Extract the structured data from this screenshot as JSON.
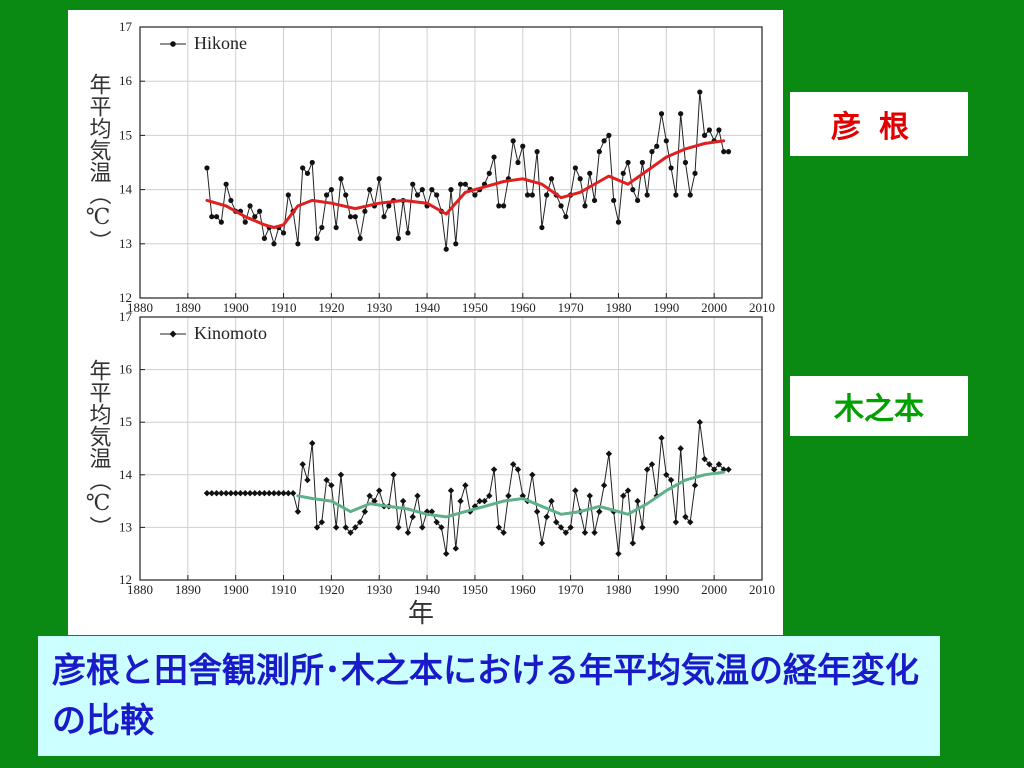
{
  "slide": {
    "label_hikone": "彦根",
    "label_kinomoto": "木之本",
    "caption": "彦根と田舎観測所･木之本における年平均気温の経年変化の比較"
  },
  "colors": {
    "background": "#0a8a12",
    "hikone_label": "#e00000",
    "kinomoto_label": "#00a000",
    "caption_text": "#1a1ac8",
    "caption_bg": "#ccffff",
    "hikone_trend": "#e02020",
    "kinomoto_trend": "#5fb08a"
  },
  "chart_data": [
    {
      "type": "line",
      "ylabel": "年平均気温（℃）",
      "xlabel": "",
      "xlim": [
        1880,
        2010
      ],
      "ylim": [
        12,
        17
      ],
      "xticks": [
        "1880",
        "1890",
        "1900",
        "1910",
        "1920",
        "1930",
        "1940",
        "1950",
        "1960",
        "1970",
        "1980",
        "1990",
        "2000",
        "2010"
      ],
      "yticks": [
        "12",
        "13",
        "14",
        "15",
        "16",
        "17"
      ],
      "grid": true,
      "legend_position": "top-left",
      "series": [
        {
          "name": "Hikone",
          "x": [
            1894,
            1895,
            1896,
            1897,
            1898,
            1899,
            1900,
            1901,
            1902,
            1903,
            1904,
            1905,
            1906,
            1907,
            1908,
            1909,
            1910,
            1911,
            1912,
            1913,
            1914,
            1915,
            1916,
            1917,
            1918,
            1919,
            1920,
            1921,
            1922,
            1923,
            1924,
            1925,
            1926,
            1927,
            1928,
            1929,
            1930,
            1931,
            1932,
            1933,
            1934,
            1935,
            1936,
            1937,
            1938,
            1939,
            1940,
            1941,
            1942,
            1943,
            1944,
            1945,
            1946,
            1947,
            1948,
            1949,
            1950,
            1951,
            1952,
            1953,
            1954,
            1955,
            1956,
            1957,
            1958,
            1959,
            1960,
            1961,
            1962,
            1963,
            1964,
            1965,
            1966,
            1967,
            1968,
            1969,
            1970,
            1971,
            1972,
            1973,
            1974,
            1975,
            1976,
            1977,
            1978,
            1979,
            1980,
            1981,
            1982,
            1983,
            1984,
            1985,
            1986,
            1987,
            1988,
            1989,
            1990,
            1991,
            1992,
            1993,
            1994,
            1995,
            1996,
            1997,
            1998,
            1999,
            2000,
            2001,
            2002,
            2003
          ],
          "y": [
            14.4,
            13.5,
            13.5,
            13.4,
            14.1,
            13.8,
            13.6,
            13.6,
            13.4,
            13.7,
            13.5,
            13.6,
            13.1,
            13.3,
            13.0,
            13.3,
            13.2,
            13.9,
            13.6,
            13.0,
            14.4,
            14.3,
            14.5,
            13.1,
            13.3,
            13.9,
            14.0,
            13.3,
            14.2,
            13.9,
            13.5,
            13.5,
            13.1,
            13.6,
            14.0,
            13.7,
            14.2,
            13.5,
            13.7,
            13.8,
            13.1,
            13.8,
            13.2,
            14.1,
            13.9,
            14.0,
            13.7,
            14.0,
            13.9,
            13.6,
            12.9,
            14.0,
            13.0,
            14.1,
            14.1,
            14.0,
            13.9,
            14.0,
            14.1,
            14.3,
            14.6,
            13.7,
            13.7,
            14.2,
            14.9,
            14.5,
            14.8,
            13.9,
            13.9,
            14.7,
            13.3,
            13.9,
            14.2,
            13.9,
            13.7,
            13.5,
            13.9,
            14.4,
            14.2,
            13.7,
            14.3,
            13.8,
            14.7,
            14.9,
            15.0,
            13.8,
            13.4,
            14.3,
            14.5,
            14.0,
            13.8,
            14.5,
            13.9,
            14.7,
            14.8,
            15.4,
            14.9,
            14.4,
            13.9,
            15.4,
            14.5,
            13.9,
            14.3,
            15.8,
            15.0,
            15.1,
            14.9,
            15.1,
            14.7,
            14.7
          ]
        },
        {
          "name": "",
          "x": [
            1894,
            1898,
            1902,
            1906,
            1908,
            1910,
            1913,
            1916,
            1920,
            1925,
            1930,
            1935,
            1940,
            1944,
            1948,
            1952,
            1956,
            1960,
            1964,
            1968,
            1972,
            1976,
            1978,
            1982,
            1986,
            1990,
            1994,
            1998,
            2002
          ],
          "y": [
            13.8,
            13.7,
            13.5,
            13.35,
            13.3,
            13.35,
            13.7,
            13.8,
            13.75,
            13.65,
            13.75,
            13.8,
            13.75,
            13.55,
            13.95,
            14.05,
            14.15,
            14.2,
            14.1,
            13.85,
            13.95,
            14.15,
            14.25,
            14.1,
            14.35,
            14.6,
            14.75,
            14.85,
            14.9
          ]
        }
      ]
    },
    {
      "type": "line",
      "ylabel": "年平均気温（℃）",
      "xlabel": "年",
      "xlim": [
        1880,
        2010
      ],
      "ylim": [
        12,
        17
      ],
      "xticks": [
        "1880",
        "1890",
        "1900",
        "1910",
        "1920",
        "1930",
        "1940",
        "1950",
        "1960",
        "1970",
        "1980",
        "1990",
        "2000",
        "2010"
      ],
      "yticks": [
        "12",
        "13",
        "14",
        "15",
        "16",
        "17"
      ],
      "grid": true,
      "legend_position": "top-left",
      "series": [
        {
          "name": "Kinomoto",
          "x": [
            1894,
            1895,
            1896,
            1897,
            1898,
            1899,
            1900,
            1901,
            1902,
            1903,
            1904,
            1905,
            1906,
            1907,
            1908,
            1909,
            1910,
            1911,
            1912,
            1913,
            1914,
            1915,
            1916,
            1917,
            1918,
            1919,
            1920,
            1921,
            1922,
            1923,
            1924,
            1925,
            1926,
            1927,
            1928,
            1929,
            1930,
            1931,
            1932,
            1933,
            1934,
            1935,
            1936,
            1937,
            1938,
            1939,
            1940,
            1941,
            1942,
            1943,
            1944,
            1945,
            1946,
            1947,
            1948,
            1949,
            1950,
            1951,
            1952,
            1953,
            1954,
            1955,
            1956,
            1957,
            1958,
            1959,
            1960,
            1961,
            1962,
            1963,
            1964,
            1965,
            1966,
            1967,
            1968,
            1969,
            1970,
            1971,
            1972,
            1973,
            1974,
            1975,
            1976,
            1977,
            1978,
            1979,
            1980,
            1981,
            1982,
            1983,
            1984,
            1985,
            1986,
            1987,
            1988,
            1989,
            1990,
            1991,
            1992,
            1993,
            1994,
            1995,
            1996,
            1997,
            1998,
            1999,
            2000,
            2001,
            2002,
            2003
          ],
          "y": [
            13.65,
            13.65,
            13.65,
            13.65,
            13.65,
            13.65,
            13.65,
            13.65,
            13.65,
            13.65,
            13.65,
            13.65,
            13.65,
            13.65,
            13.65,
            13.65,
            13.65,
            13.65,
            13.65,
            13.3,
            14.2,
            13.9,
            14.6,
            13.0,
            13.1,
            13.9,
            13.8,
            13.0,
            14.0,
            13.0,
            12.9,
            13.0,
            13.1,
            13.3,
            13.6,
            13.5,
            13.7,
            13.4,
            13.4,
            14.0,
            13.0,
            13.5,
            12.9,
            13.2,
            13.6,
            13.0,
            13.3,
            13.3,
            13.1,
            13.0,
            12.5,
            13.7,
            12.6,
            13.5,
            13.8,
            13.3,
            13.4,
            13.5,
            13.5,
            13.6,
            14.1,
            13.0,
            12.9,
            13.6,
            14.2,
            14.1,
            13.6,
            13.5,
            14.0,
            13.3,
            12.7,
            13.2,
            13.5,
            13.1,
            13.0,
            12.9,
            13.0,
            13.7,
            13.3,
            12.9,
            13.6,
            12.9,
            13.3,
            13.8,
            14.4,
            13.3,
            12.5,
            13.6,
            13.7,
            12.7,
            13.5,
            13.0,
            14.1,
            14.2,
            13.6,
            14.7,
            14.0,
            13.9,
            13.1,
            14.5,
            13.2,
            13.1,
            13.8,
            15.0,
            14.3,
            14.2,
            14.1,
            14.2,
            14.1,
            14.1
          ]
        },
        {
          "name": "",
          "x": [
            1913,
            1916,
            1920,
            1924,
            1928,
            1932,
            1936,
            1940,
            1944,
            1948,
            1952,
            1956,
            1960,
            1964,
            1968,
            1972,
            1976,
            1978,
            1982,
            1986,
            1990,
            1994,
            1998,
            2002
          ],
          "y": [
            13.6,
            13.55,
            13.5,
            13.3,
            13.45,
            13.4,
            13.35,
            13.25,
            13.2,
            13.3,
            13.4,
            13.5,
            13.55,
            13.4,
            13.25,
            13.3,
            13.4,
            13.35,
            13.25,
            13.45,
            13.7,
            13.9,
            14.0,
            14.05
          ]
        }
      ]
    }
  ]
}
